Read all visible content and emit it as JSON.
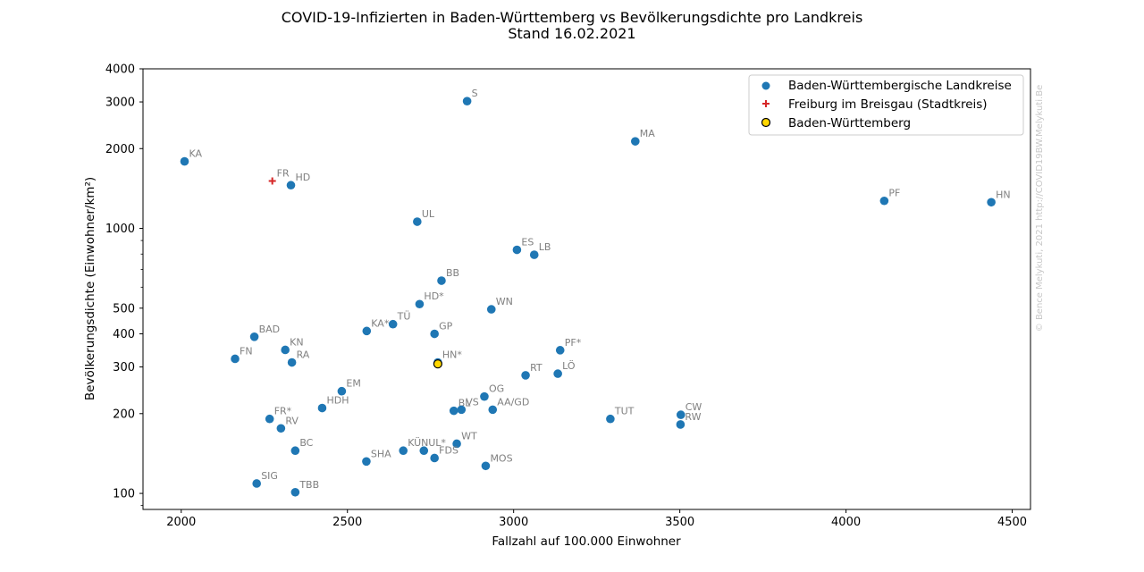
{
  "chart_data": {
    "type": "scatter",
    "title": "COVID-19-Infizierten in Baden-Württemberg vs Bevölkerungsdichte pro Landkreis",
    "subtitle": "Stand 16.02.2021",
    "xlabel": "Fallzahl auf 100.000 Einwohner",
    "ylabel": "Bevölkerungsdichte (Einwohner/km²)",
    "xlim": [
      1885,
      4555
    ],
    "ylim": [
      87,
      4000
    ],
    "yscale": "log",
    "xticks": [
      2000,
      2500,
      3000,
      3500,
      4000,
      4500
    ],
    "yticks": [
      100,
      200,
      300,
      400,
      500,
      1000,
      2000,
      3000,
      4000
    ],
    "legend_position": "top-right",
    "watermark": "© Bence Melykuti, 2021  http://COVID19BW.Melykuti.Be",
    "series": [
      {
        "name": "Baden-Württembergische Landkreise",
        "marker": "circle",
        "color": "#1f77b4",
        "points": [
          {
            "label": "S",
            "x": 2860,
            "y": 3020
          },
          {
            "label": "MA",
            "x": 3366,
            "y": 2130
          },
          {
            "label": "KA",
            "x": 2010,
            "y": 1790
          },
          {
            "label": "HD",
            "x": 2330,
            "y": 1455
          },
          {
            "label": "PF",
            "x": 4115,
            "y": 1270
          },
          {
            "label": "HN",
            "x": 4437,
            "y": 1255
          },
          {
            "label": "UL",
            "x": 2710,
            "y": 1060
          },
          {
            "label": "ES",
            "x": 3010,
            "y": 830
          },
          {
            "label": "LB",
            "x": 3062,
            "y": 795
          },
          {
            "label": "BB",
            "x": 2783,
            "y": 635
          },
          {
            "label": "HD*",
            "x": 2717,
            "y": 518
          },
          {
            "label": "WN",
            "x": 2933,
            "y": 495
          },
          {
            "label": "KA*",
            "x": 2558,
            "y": 410
          },
          {
            "label": "TÜ",
            "x": 2637,
            "y": 435
          },
          {
            "label": "GP",
            "x": 2762,
            "y": 400
          },
          {
            "label": "BAD",
            "x": 2220,
            "y": 390
          },
          {
            "label": "KN",
            "x": 2313,
            "y": 348
          },
          {
            "label": "PF*",
            "x": 3140,
            "y": 347
          },
          {
            "label": "FN",
            "x": 2162,
            "y": 322
          },
          {
            "label": "RA",
            "x": 2333,
            "y": 312
          },
          {
            "label": "HN*",
            "x": 2772,
            "y": 312
          },
          {
            "label": "LÖ",
            "x": 3133,
            "y": 283
          },
          {
            "label": "RT",
            "x": 3036,
            "y": 279
          },
          {
            "label": "EM",
            "x": 2483,
            "y": 243
          },
          {
            "label": "OG",
            "x": 2912,
            "y": 232
          },
          {
            "label": "HDH",
            "x": 2424,
            "y": 210
          },
          {
            "label": "BL",
            "x": 2820,
            "y": 205
          },
          {
            "label": "VS",
            "x": 2843,
            "y": 207
          },
          {
            "label": "AA/GD",
            "x": 2937,
            "y": 207
          },
          {
            "label": "CW",
            "x": 3503,
            "y": 198
          },
          {
            "label": "TUT",
            "x": 3291,
            "y": 191
          },
          {
            "label": "FR*",
            "x": 2266,
            "y": 191
          },
          {
            "label": "RW",
            "x": 3502,
            "y": 182
          },
          {
            "label": "RV",
            "x": 2300,
            "y": 176
          },
          {
            "label": "WT",
            "x": 2829,
            "y": 154
          },
          {
            "label": "BC",
            "x": 2343,
            "y": 145
          },
          {
            "label": "KÜN",
            "x": 2668,
            "y": 145
          },
          {
            "label": "UL*",
            "x": 2730,
            "y": 145
          },
          {
            "label": "FDS",
            "x": 2762,
            "y": 136
          },
          {
            "label": "SHA",
            "x": 2557,
            "y": 132
          },
          {
            "label": "MOS",
            "x": 2916,
            "y": 127
          },
          {
            "label": "SIG",
            "x": 2227,
            "y": 109
          },
          {
            "label": "TBB",
            "x": 2343,
            "y": 101
          }
        ]
      },
      {
        "name": "Freiburg im Breisgau (Stadtkreis)",
        "marker": "plus",
        "color": "#d62728",
        "points": [
          {
            "label": "FR",
            "x": 2274,
            "y": 1510
          }
        ]
      },
      {
        "name": "Baden-Württemberg",
        "marker": "circle-outlined",
        "color": "#ffd700",
        "edge_color": "#000000",
        "points": [
          {
            "label": "",
            "x": 2772,
            "y": 308
          }
        ]
      }
    ]
  }
}
